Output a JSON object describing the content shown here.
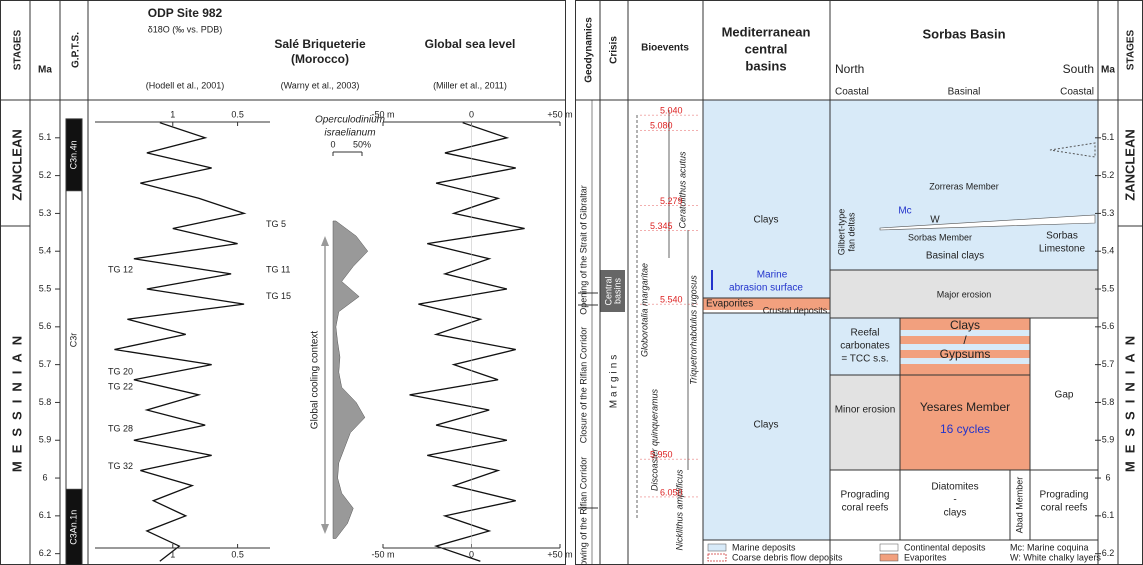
{
  "header": {
    "stages": "STAGES",
    "ma": "Ma",
    "gpts": "G.P.T.S.",
    "odp_title": "ODP Site 982",
    "odp_subtitle": "δ18O (‰ vs. PDB)",
    "odp_ref": "(Hodell et al., 2001)",
    "sale_title": [
      "Salé Briqueterie",
      "(Morocco)"
    ],
    "sale_ref": "(Warny et al., 2003)",
    "sea_title": "Global sea level",
    "sea_ref": "(Miller et al., 2011)",
    "geodynamics": "Geodynamics",
    "crisis": "Crisis",
    "bioevents": "Bioevents",
    "med_title": [
      "Mediterranean",
      "central",
      "basins"
    ],
    "sorbas_title": "Sorbas Basin",
    "north": "North",
    "south": "South",
    "coastal_n": "Coastal",
    "basinal": "Basinal",
    "coastal_s": "Coastal",
    "ma_right": "Ma",
    "stages_right": "STAGES"
  },
  "stages": [
    "ZANCLEAN",
    "MESSINIAN"
  ],
  "age_range": [
    5.0,
    6.23
  ],
  "ma_ticks": [
    5.1,
    5.2,
    5.3,
    5.4,
    5.5,
    5.6,
    5.7,
    5.8,
    5.9,
    6.0,
    6.1,
    6.2
  ],
  "gpts": [
    {
      "label": "C3n.4n",
      "top": 5.05,
      "base": 5.24,
      "color": "#111111"
    },
    {
      "label": "C3r",
      "top": 5.24,
      "base": 6.03,
      "color": "#ffffff"
    },
    {
      "label": "C3An.1n",
      "top": 6.03,
      "base": 6.23,
      "color": "#111111"
    }
  ],
  "isotope": {
    "xlim": [
      1.6,
      0.25
    ],
    "xticks": [
      1,
      0.5
    ],
    "ages": [
      5.06,
      5.1,
      5.14,
      5.18,
      5.22,
      5.26,
      5.3,
      5.34,
      5.38,
      5.42,
      5.46,
      5.5,
      5.54,
      5.58,
      5.62,
      5.66,
      5.7,
      5.74,
      5.78,
      5.82,
      5.86,
      5.9,
      5.94,
      5.98,
      6.02,
      6.06,
      6.1,
      6.14,
      6.18,
      6.22
    ],
    "values": [
      1.1,
      0.75,
      1.2,
      0.7,
      1.25,
      0.8,
      0.45,
      1.0,
      0.5,
      1.3,
      0.55,
      1.2,
      0.45,
      1.35,
      0.9,
      1.45,
      0.7,
      1.3,
      0.8,
      1.2,
      0.75,
      1.3,
      0.7,
      1.25,
      0.85,
      1.15,
      0.9,
      1.2,
      0.95,
      1.1
    ],
    "events": [
      {
        "label": "TG 5",
        "age": 5.33
      },
      {
        "label": "TG 11",
        "age": 5.45
      },
      {
        "label": "TG 12",
        "age": 5.45
      },
      {
        "label": "TG 15",
        "age": 5.52
      },
      {
        "label": "TG 20",
        "age": 5.72
      },
      {
        "label": "TG 22",
        "age": 5.76
      },
      {
        "label": "TG 28",
        "age": 5.87
      },
      {
        "label": "TG 32",
        "age": 5.97
      }
    ]
  },
  "pollen": {
    "name": [
      "Operculodinium",
      "israelianum"
    ],
    "context": "Global cooling context",
    "xlim": [
      0,
      50
    ],
    "xticks": [
      0,
      {
        "value": 50,
        "label": "50%"
      }
    ],
    "ages": [
      5.32,
      5.36,
      5.4,
      5.44,
      5.48,
      5.52,
      5.56,
      5.6,
      5.64,
      5.68,
      5.72,
      5.76,
      5.8,
      5.84,
      5.88,
      5.92,
      5.96,
      6.0,
      6.04,
      6.08,
      6.12,
      6.16
    ],
    "values": [
      5,
      40,
      60,
      35,
      15,
      45,
      10,
      5,
      8,
      12,
      10,
      15,
      40,
      55,
      30,
      20,
      10,
      8,
      15,
      35,
      25,
      5
    ]
  },
  "sea_level": {
    "xlim": [
      -50,
      50
    ],
    "xticks": [
      {
        "value": -50,
        "label": "-50 m"
      },
      0,
      {
        "value": 50,
        "label": "+50 m"
      }
    ],
    "ages": [
      5.06,
      5.1,
      5.14,
      5.18,
      5.22,
      5.26,
      5.3,
      5.34,
      5.38,
      5.42,
      5.46,
      5.5,
      5.54,
      5.58,
      5.62,
      5.66,
      5.7,
      5.74,
      5.78,
      5.82,
      5.86,
      5.9,
      5.94,
      5.98,
      6.02,
      6.06,
      6.1,
      6.14,
      6.18,
      6.22
    ],
    "values": [
      -5,
      20,
      -15,
      25,
      -20,
      15,
      -10,
      30,
      -25,
      10,
      -15,
      20,
      -30,
      5,
      -20,
      25,
      -10,
      15,
      -35,
      10,
      -20,
      20,
      -25,
      15,
      -10,
      25,
      -15,
      10,
      -20,
      5
    ]
  },
  "geodynamics": {
    "events": [
      "Opening of the Strait of Gibraltar",
      "Closure of the Rifian Corridor",
      "Narrowing of the Rifian Corridor"
    ],
    "margins": "Margins",
    "central": [
      "Central",
      "basins"
    ]
  },
  "bioevents": {
    "ages": [
      {
        "value": 5.04,
        "label": "5.040"
      },
      {
        "value": 5.08,
        "label": "5.080"
      },
      5.279,
      5.345,
      {
        "value": 5.54,
        "label": "5.540"
      },
      {
        "value": 5.95,
        "label": "5.950"
      },
      {
        "value": 6.05,
        "label": "6.050"
      }
    ],
    "species": [
      "Ceratolithus acutus",
      "Triquetrorhabdulus rugosus",
      "Globorotalia margaritae",
      "Discoaster quinqueramus",
      "Nicklithus amplificus"
    ]
  },
  "mediterranean": {
    "clays_top": "Clays",
    "abrasion": [
      "Marine",
      "abrasion surface"
    ],
    "evaporites": "Evaporites",
    "clays_bottom": "Clays",
    "crustal": "Crustal deposits"
  },
  "sorbas": {
    "zorreras": "Zorreras Member",
    "mc": "Mc",
    "w": "W",
    "gilbert": [
      "Gilbert-type",
      "fan deltas"
    ],
    "sorbas_member": "Sorbas Member",
    "basinal_clays": "Basinal clays",
    "limestone": [
      "Sorbas",
      "Limestone"
    ],
    "major_erosion": "Major erosion",
    "reefal": [
      "Reefal",
      "carbonates",
      "= TCC s.s."
    ],
    "clays": "Clays",
    "slash": "/",
    "gypsums": "Gypsums",
    "gap": "Gap",
    "minor_erosion": "Minor erosion",
    "yesares": "Yesares Member",
    "cycles": "16 cycles",
    "prograding_n": [
      "Prograding",
      "coral reefs"
    ],
    "diatomites": [
      "Diatomites",
      "-",
      "clays"
    ],
    "abad": "Abad Member",
    "prograding_s": [
      "Prograding",
      "coral reefs"
    ]
  },
  "legend": [
    "Marine deposits",
    "Continental deposits",
    "Mc: Marine coquina",
    "Coarse debris flow deposits",
    "Evaporites",
    "W: White chalky layers"
  ]
}
